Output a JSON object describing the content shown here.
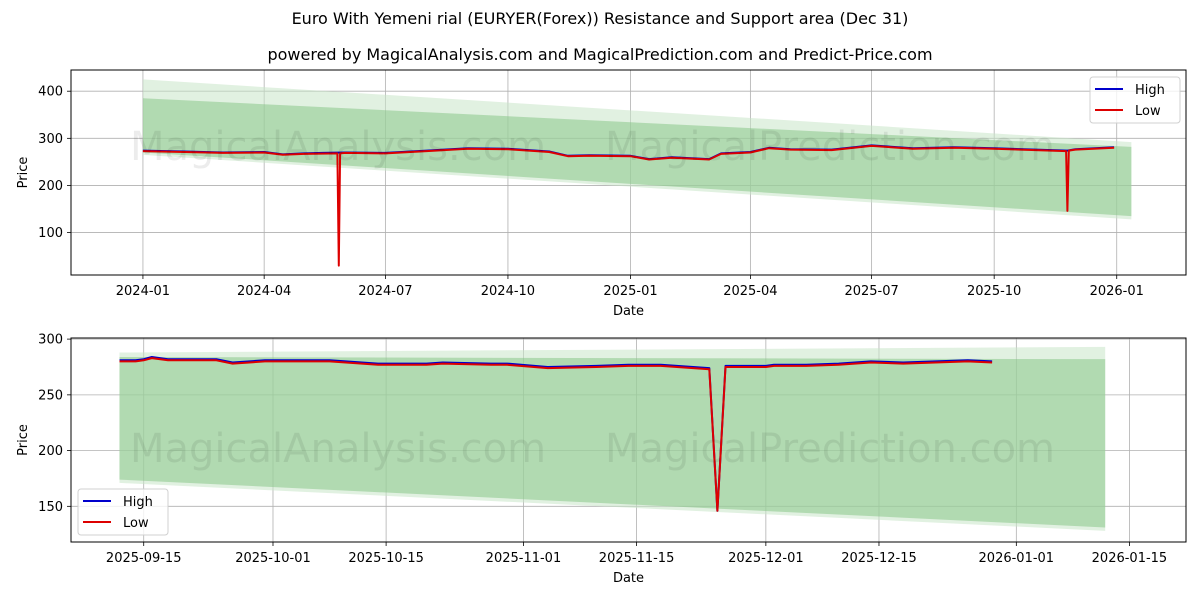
{
  "header": {
    "title": "Euro With Yemeni rial (EURYER(Forex)) Resistance and Support area (Dec 31)",
    "subtitle": "powered by MagicalAnalysis.com and MagicalPrediction.com and Predict-Price.com"
  },
  "watermarks": [
    "MagicalAnalysis.com",
    "MagicalPrediction.com"
  ],
  "colors": {
    "high": "#0000cc",
    "low": "#dd0000",
    "band_dark": "#82c482",
    "band_light": "#c8e6c8",
    "grid": "#b0b0b0"
  },
  "chart_data": [
    {
      "type": "line",
      "title": "Full history",
      "xlabel": "Date",
      "ylabel": "Price",
      "ylim": [
        10,
        445
      ],
      "yticks": [
        100,
        200,
        300,
        400
      ],
      "xticks": [
        "2024-01",
        "2024-04",
        "2024-07",
        "2024-10",
        "2025-01",
        "2025-04",
        "2025-07",
        "2025-10",
        "2026-01"
      ],
      "grid": true,
      "legend": {
        "position": "upper right",
        "entries": [
          "High",
          "Low"
        ]
      },
      "series": [
        {
          "name": "High",
          "x": [
            "2024-01-01",
            "2024-02-01",
            "2024-03-01",
            "2024-04-01",
            "2024-04-15",
            "2024-05-01",
            "2024-05-15",
            "2024-06-01",
            "2024-07-01",
            "2024-08-01",
            "2024-09-01",
            "2024-10-01",
            "2024-11-01",
            "2024-11-15",
            "2024-12-01",
            "2025-01-01",
            "2025-01-15",
            "2025-02-01",
            "2025-03-01",
            "2025-03-10",
            "2025-04-01",
            "2025-04-15",
            "2025-05-01",
            "2025-06-01",
            "2025-07-01",
            "2025-08-01",
            "2025-09-01",
            "2025-10-01",
            "2025-11-01",
            "2025-11-25",
            "2025-12-01",
            "2025-12-30"
          ],
          "values": [
            274,
            272,
            270,
            271,
            266,
            268,
            269,
            270,
            269,
            274,
            279,
            278,
            272,
            263,
            264,
            263,
            256,
            260,
            256,
            268,
            271,
            280,
            277,
            276,
            285,
            279,
            281,
            279,
            276,
            274,
            277,
            281
          ]
        },
        {
          "name": "Low",
          "x": [
            "2024-01-01",
            "2024-02-01",
            "2024-03-01",
            "2024-04-01",
            "2024-04-15",
            "2024-05-01",
            "2024-05-26",
            "2024-05-27",
            "2024-05-28",
            "2024-06-01",
            "2024-07-01",
            "2024-08-01",
            "2024-09-01",
            "2024-10-01",
            "2024-11-01",
            "2024-11-15",
            "2024-12-01",
            "2025-01-01",
            "2025-01-15",
            "2025-02-01",
            "2025-03-01",
            "2025-03-10",
            "2025-04-01",
            "2025-04-15",
            "2025-05-01",
            "2025-06-01",
            "2025-07-01",
            "2025-08-01",
            "2025-09-01",
            "2025-10-01",
            "2025-11-01",
            "2025-11-24",
            "2025-11-25",
            "2025-11-26",
            "2025-12-01",
            "2025-12-30"
          ],
          "values": [
            273,
            271,
            269,
            270,
            265,
            267,
            268,
            30,
            268,
            269,
            268,
            273,
            278,
            277,
            271,
            262,
            263,
            262,
            255,
            259,
            255,
            267,
            270,
            279,
            276,
            275,
            284,
            278,
            280,
            278,
            275,
            273,
            146,
            274,
            276,
            280
          ]
        }
      ],
      "bands": [
        {
          "name": "Resistance/Support outer (light)",
          "x_start": "2024-01-01",
          "x_end": "2026-01-12",
          "start": [
            265,
            425
          ],
          "end": [
            128,
            292
          ]
        },
        {
          "name": "Resistance/Support inner (dark)",
          "x_start": "2024-01-01",
          "x_end": "2026-01-12",
          "start": [
            270,
            385
          ],
          "end": [
            135,
            282
          ]
        }
      ]
    },
    {
      "type": "line",
      "title": "Recent detail",
      "xlabel": "Date",
      "ylabel": "Price",
      "ylim": [
        118,
        301
      ],
      "yticks": [
        150,
        200,
        250,
        300
      ],
      "xticks": [
        "2025-09-15",
        "2025-10-01",
        "2025-10-15",
        "2025-11-01",
        "2025-11-15",
        "2025-12-01",
        "2025-12-15",
        "2026-01-01",
        "2026-01-15"
      ],
      "grid": true,
      "legend": {
        "position": "lower left",
        "entries": [
          "High",
          "Low"
        ]
      },
      "series": [
        {
          "name": "High",
          "x": [
            "2025-09-12",
            "2025-09-14",
            "2025-09-15",
            "2025-09-16",
            "2025-09-18",
            "2025-09-22",
            "2025-09-24",
            "2025-09-26",
            "2025-09-30",
            "2025-10-04",
            "2025-10-08",
            "2025-10-14",
            "2025-10-16",
            "2025-10-20",
            "2025-10-22",
            "2025-10-28",
            "2025-10-30",
            "2025-11-04",
            "2025-11-10",
            "2025-11-14",
            "2025-11-18",
            "2025-11-22",
            "2025-11-24",
            "2025-11-25",
            "2025-11-26",
            "2025-11-28",
            "2025-12-01",
            "2025-12-02",
            "2025-12-06",
            "2025-12-10",
            "2025-12-14",
            "2025-12-18",
            "2025-12-22",
            "2025-12-26",
            "2025-12-29"
          ],
          "values": [
            281,
            281,
            282,
            284,
            282,
            282,
            282,
            279,
            281,
            281,
            281,
            278,
            278,
            278,
            279,
            278,
            278,
            275,
            276,
            277,
            277,
            275,
            274,
            146,
            276,
            276,
            276,
            277,
            277,
            278,
            280,
            279,
            280,
            281,
            280
          ]
        },
        {
          "name": "Low",
          "x": [
            "2025-09-12",
            "2025-09-14",
            "2025-09-15",
            "2025-09-16",
            "2025-09-18",
            "2025-09-22",
            "2025-09-24",
            "2025-09-26",
            "2025-09-30",
            "2025-10-04",
            "2025-10-08",
            "2025-10-14",
            "2025-10-16",
            "2025-10-20",
            "2025-10-22",
            "2025-10-28",
            "2025-10-30",
            "2025-11-04",
            "2025-11-10",
            "2025-11-14",
            "2025-11-18",
            "2025-11-22",
            "2025-11-24",
            "2025-11-25",
            "2025-11-26",
            "2025-11-28",
            "2025-12-01",
            "2025-12-02",
            "2025-12-06",
            "2025-12-10",
            "2025-12-14",
            "2025-12-18",
            "2025-12-22",
            "2025-12-26",
            "2025-12-29"
          ],
          "values": [
            280,
            280,
            281,
            283,
            281,
            281,
            281,
            278,
            280,
            280,
            280,
            277,
            277,
            277,
            278,
            277,
            277,
            274,
            275,
            276,
            276,
            274,
            273,
            146,
            275,
            275,
            275,
            276,
            276,
            277,
            279,
            278,
            279,
            280,
            279
          ]
        }
      ],
      "bands": [
        {
          "name": "Resistance/Support outer (light)",
          "x_start": "2025-09-12",
          "x_end": "2026-01-12",
          "start": [
            171,
            288
          ],
          "end": [
            128,
            293
          ]
        },
        {
          "name": "Resistance/Support inner (dark)",
          "x_start": "2025-09-12",
          "x_end": "2026-01-12",
          "start": [
            174,
            284
          ],
          "end": [
            131,
            282
          ]
        }
      ]
    }
  ]
}
